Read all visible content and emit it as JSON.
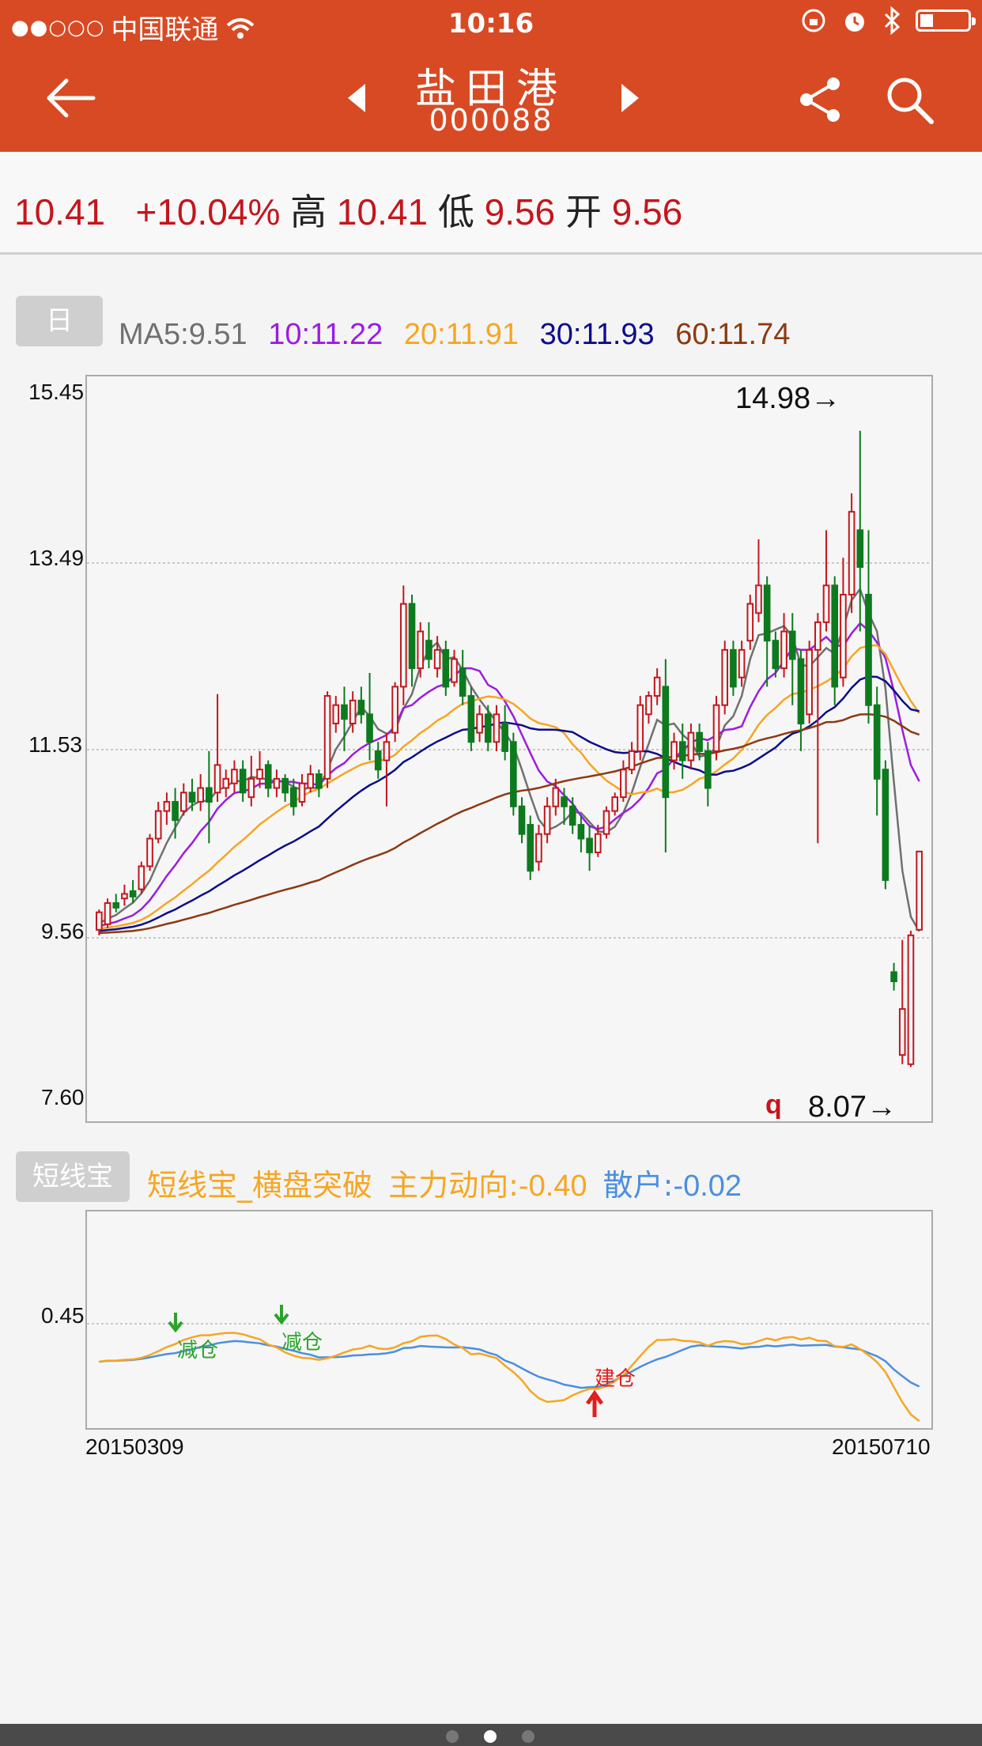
{
  "status": {
    "carrier": "中国联通",
    "signal_dots": "●●○○○",
    "time": "10:16"
  },
  "header": {
    "title": "盐田港",
    "code": "000088"
  },
  "quote": {
    "price": "10.41",
    "change": "+10.04%",
    "high_label": "高",
    "high": "10.41",
    "low_label": "低",
    "low": "9.56",
    "open_label": "开",
    "open": "9.56"
  },
  "period_tag": "日",
  "ma": {
    "ma5": "MA5:9.51",
    "ma10": "10:11.22",
    "ma20": "20:11.91",
    "ma30": "30:11.93",
    "ma60": "60:11.74"
  },
  "colors": {
    "ma5": "#707070",
    "ma10": "#9b1de0",
    "ma20": "#f5a623",
    "ma30": "#0d0d8a",
    "ma60": "#8b3a12",
    "up": "#c4161c",
    "down": "#0d7a1e",
    "header": "#d84a24",
    "ind_main": "#f5a623",
    "ind_retail": "#4a8fe0"
  },
  "main_chart": {
    "y_ticks": [
      "15.45",
      "13.49",
      "11.53",
      "9.56",
      "7.60"
    ],
    "max_label": "14.98→",
    "min_label": "8.07→",
    "q_marker": "q"
  },
  "indicator": {
    "tag": "短线宝",
    "name": "短线宝_横盘突破",
    "main_label": "主力动向:",
    "main_value": "-0.40",
    "retail_label": "散户:",
    "retail_value": "-0.02",
    "y_tick": "0.45",
    "signals": [
      {
        "label": "减仓",
        "type": "sell"
      },
      {
        "label": "减仓",
        "type": "sell"
      },
      {
        "label": "建仓",
        "type": "buy"
      }
    ]
  },
  "dates": {
    "start": "20150309",
    "end": "20150710"
  },
  "chart_data": {
    "type": "candlestick",
    "ylim": [
      7.6,
      15.45
    ],
    "candles": [
      [
        9.56,
        9.75,
        9.5,
        9.78
      ],
      [
        9.62,
        9.85,
        9.58,
        9.9
      ],
      [
        9.85,
        9.8,
        9.75,
        9.95
      ],
      [
        9.9,
        9.95,
        9.82,
        10.05
      ],
      [
        9.98,
        9.92,
        9.85,
        10.1
      ],
      [
        10.0,
        10.25,
        9.95,
        10.3
      ],
      [
        10.25,
        10.55,
        10.2,
        10.6
      ],
      [
        10.55,
        10.85,
        10.5,
        10.95
      ],
      [
        10.85,
        10.95,
        10.7,
        11.05
      ],
      [
        10.95,
        10.75,
        10.55,
        11.1
      ],
      [
        10.85,
        11.05,
        10.8,
        11.15
      ],
      [
        11.05,
        10.95,
        10.85,
        11.2
      ],
      [
        10.95,
        11.1,
        10.85,
        11.25
      ],
      [
        11.1,
        10.95,
        10.5,
        11.5
      ],
      [
        11.05,
        11.35,
        10.95,
        12.12
      ],
      [
        11.1,
        11.2,
        11.0,
        11.3
      ],
      [
        11.15,
        11.3,
        11.05,
        11.4
      ],
      [
        11.3,
        11.05,
        10.95,
        11.4
      ],
      [
        11.0,
        11.2,
        10.9,
        11.45
      ],
      [
        11.2,
        11.3,
        11.1,
        11.5
      ],
      [
        11.35,
        11.1,
        11.0,
        11.4
      ],
      [
        11.1,
        11.2,
        11.0,
        11.3
      ],
      [
        11.2,
        11.05,
        10.95,
        11.25
      ],
      [
        11.1,
        10.9,
        10.8,
        11.2
      ],
      [
        10.95,
        11.15,
        10.9,
        11.25
      ],
      [
        11.1,
        11.25,
        11.05,
        11.35
      ],
      [
        11.25,
        11.1,
        11.0,
        11.3
      ],
      [
        11.2,
        12.1,
        11.1,
        12.15
      ],
      [
        11.8,
        12.0,
        11.7,
        12.1
      ],
      [
        12.0,
        11.85,
        11.5,
        12.2
      ],
      [
        11.8,
        12.05,
        11.7,
        12.15
      ],
      [
        12.05,
        11.9,
        11.8,
        12.2
      ],
      [
        11.9,
        11.6,
        11.4,
        12.35
      ],
      [
        11.5,
        11.3,
        11.2,
        11.6
      ],
      [
        11.4,
        11.6,
        10.9,
        11.7
      ],
      [
        11.7,
        12.2,
        11.6,
        12.25
      ],
      [
        12.2,
        13.1,
        12.0,
        13.3
      ],
      [
        13.1,
        12.4,
        12.2,
        13.2
      ],
      [
        12.4,
        12.8,
        12.3,
        12.9
      ],
      [
        12.7,
        12.5,
        12.4,
        12.9
      ],
      [
        12.4,
        12.6,
        12.3,
        12.75
      ],
      [
        12.6,
        12.2,
        12.1,
        12.7
      ],
      [
        12.25,
        12.5,
        12.2,
        12.6
      ],
      [
        12.4,
        12.1,
        12.0,
        12.6
      ],
      [
        12.1,
        11.6,
        11.5,
        12.2
      ],
      [
        11.7,
        11.9,
        11.6,
        12.0
      ],
      [
        11.9,
        11.6,
        11.5,
        12.0
      ],
      [
        11.6,
        11.9,
        11.5,
        12.0
      ],
      [
        11.8,
        11.5,
        11.4,
        12.0
      ],
      [
        11.6,
        10.9,
        10.8,
        11.7
      ],
      [
        10.9,
        10.6,
        10.5,
        11.0
      ],
      [
        10.7,
        10.2,
        10.1,
        10.8
      ],
      [
        10.3,
        10.6,
        10.2,
        10.7
      ],
      [
        10.6,
        10.9,
        10.5,
        11.0
      ],
      [
        10.9,
        11.1,
        10.8,
        11.2
      ],
      [
        11.0,
        10.9,
        10.7,
        11.1
      ],
      [
        10.9,
        10.7,
        10.6,
        11.0
      ],
      [
        10.7,
        10.55,
        10.4,
        10.8
      ],
      [
        10.55,
        10.4,
        10.2,
        10.7
      ],
      [
        10.4,
        10.6,
        10.35,
        10.7
      ],
      [
        10.6,
        10.85,
        10.55,
        10.9
      ],
      [
        10.85,
        11.0,
        10.8,
        11.05
      ],
      [
        11.0,
        11.3,
        10.95,
        11.4
      ],
      [
        11.3,
        11.5,
        11.25,
        11.6
      ],
      [
        11.5,
        12.0,
        11.4,
        12.1
      ],
      [
        11.9,
        12.1,
        11.8,
        12.15
      ],
      [
        12.1,
        12.3,
        12.0,
        12.4
      ],
      [
        12.2,
        11.0,
        10.4,
        12.5
      ],
      [
        11.4,
        11.6,
        11.3,
        11.7
      ],
      [
        11.6,
        11.4,
        11.2,
        11.8
      ],
      [
        11.4,
        11.7,
        11.3,
        11.8
      ],
      [
        11.7,
        11.5,
        11.4,
        11.8
      ],
      [
        11.5,
        11.1,
        10.9,
        11.6
      ],
      [
        11.5,
        12.0,
        11.4,
        12.1
      ],
      [
        12.0,
        12.6,
        11.9,
        12.7
      ],
      [
        12.6,
        12.2,
        12.1,
        12.7
      ],
      [
        12.3,
        12.6,
        12.2,
        12.7
      ],
      [
        12.7,
        13.1,
        12.6,
        13.2
      ],
      [
        13.0,
        13.3,
        12.9,
        13.8
      ],
      [
        13.3,
        12.7,
        12.2,
        13.4
      ],
      [
        12.7,
        12.4,
        12.3,
        12.8
      ],
      [
        12.4,
        12.8,
        12.3,
        13.0
      ],
      [
        12.8,
        12.5,
        12.0,
        13.0
      ],
      [
        12.5,
        11.8,
        11.5,
        12.6
      ],
      [
        11.9,
        12.6,
        11.8,
        12.7
      ],
      [
        12.6,
        12.9,
        10.5,
        13.0
      ],
      [
        12.9,
        13.3,
        12.8,
        13.9
      ],
      [
        13.3,
        12.2,
        12.0,
        13.4
      ],
      [
        12.3,
        13.2,
        12.2,
        13.6
      ],
      [
        13.2,
        14.1,
        13.0,
        14.3
      ],
      [
        13.9,
        13.5,
        12.8,
        14.98
      ],
      [
        13.2,
        12.0,
        11.8,
        13.9
      ],
      [
        12.0,
        11.2,
        10.8,
        12.2
      ],
      [
        11.3,
        10.1,
        10.0,
        11.4
      ],
      [
        9.1,
        9.0,
        8.9,
        9.2
      ],
      [
        8.2,
        8.7,
        8.1,
        9.45
      ],
      [
        8.1,
        9.5,
        8.07,
        9.55
      ],
      [
        9.56,
        10.41,
        9.56,
        10.41
      ]
    ],
    "ma_series": [
      {
        "name": "MA5"
      },
      {
        "name": "10"
      },
      {
        "name": "20"
      },
      {
        "name": "30"
      },
      {
        "name": "60"
      }
    ],
    "indicator_series": [
      {
        "name": "主力动向"
      },
      {
        "name": "散户"
      }
    ]
  }
}
